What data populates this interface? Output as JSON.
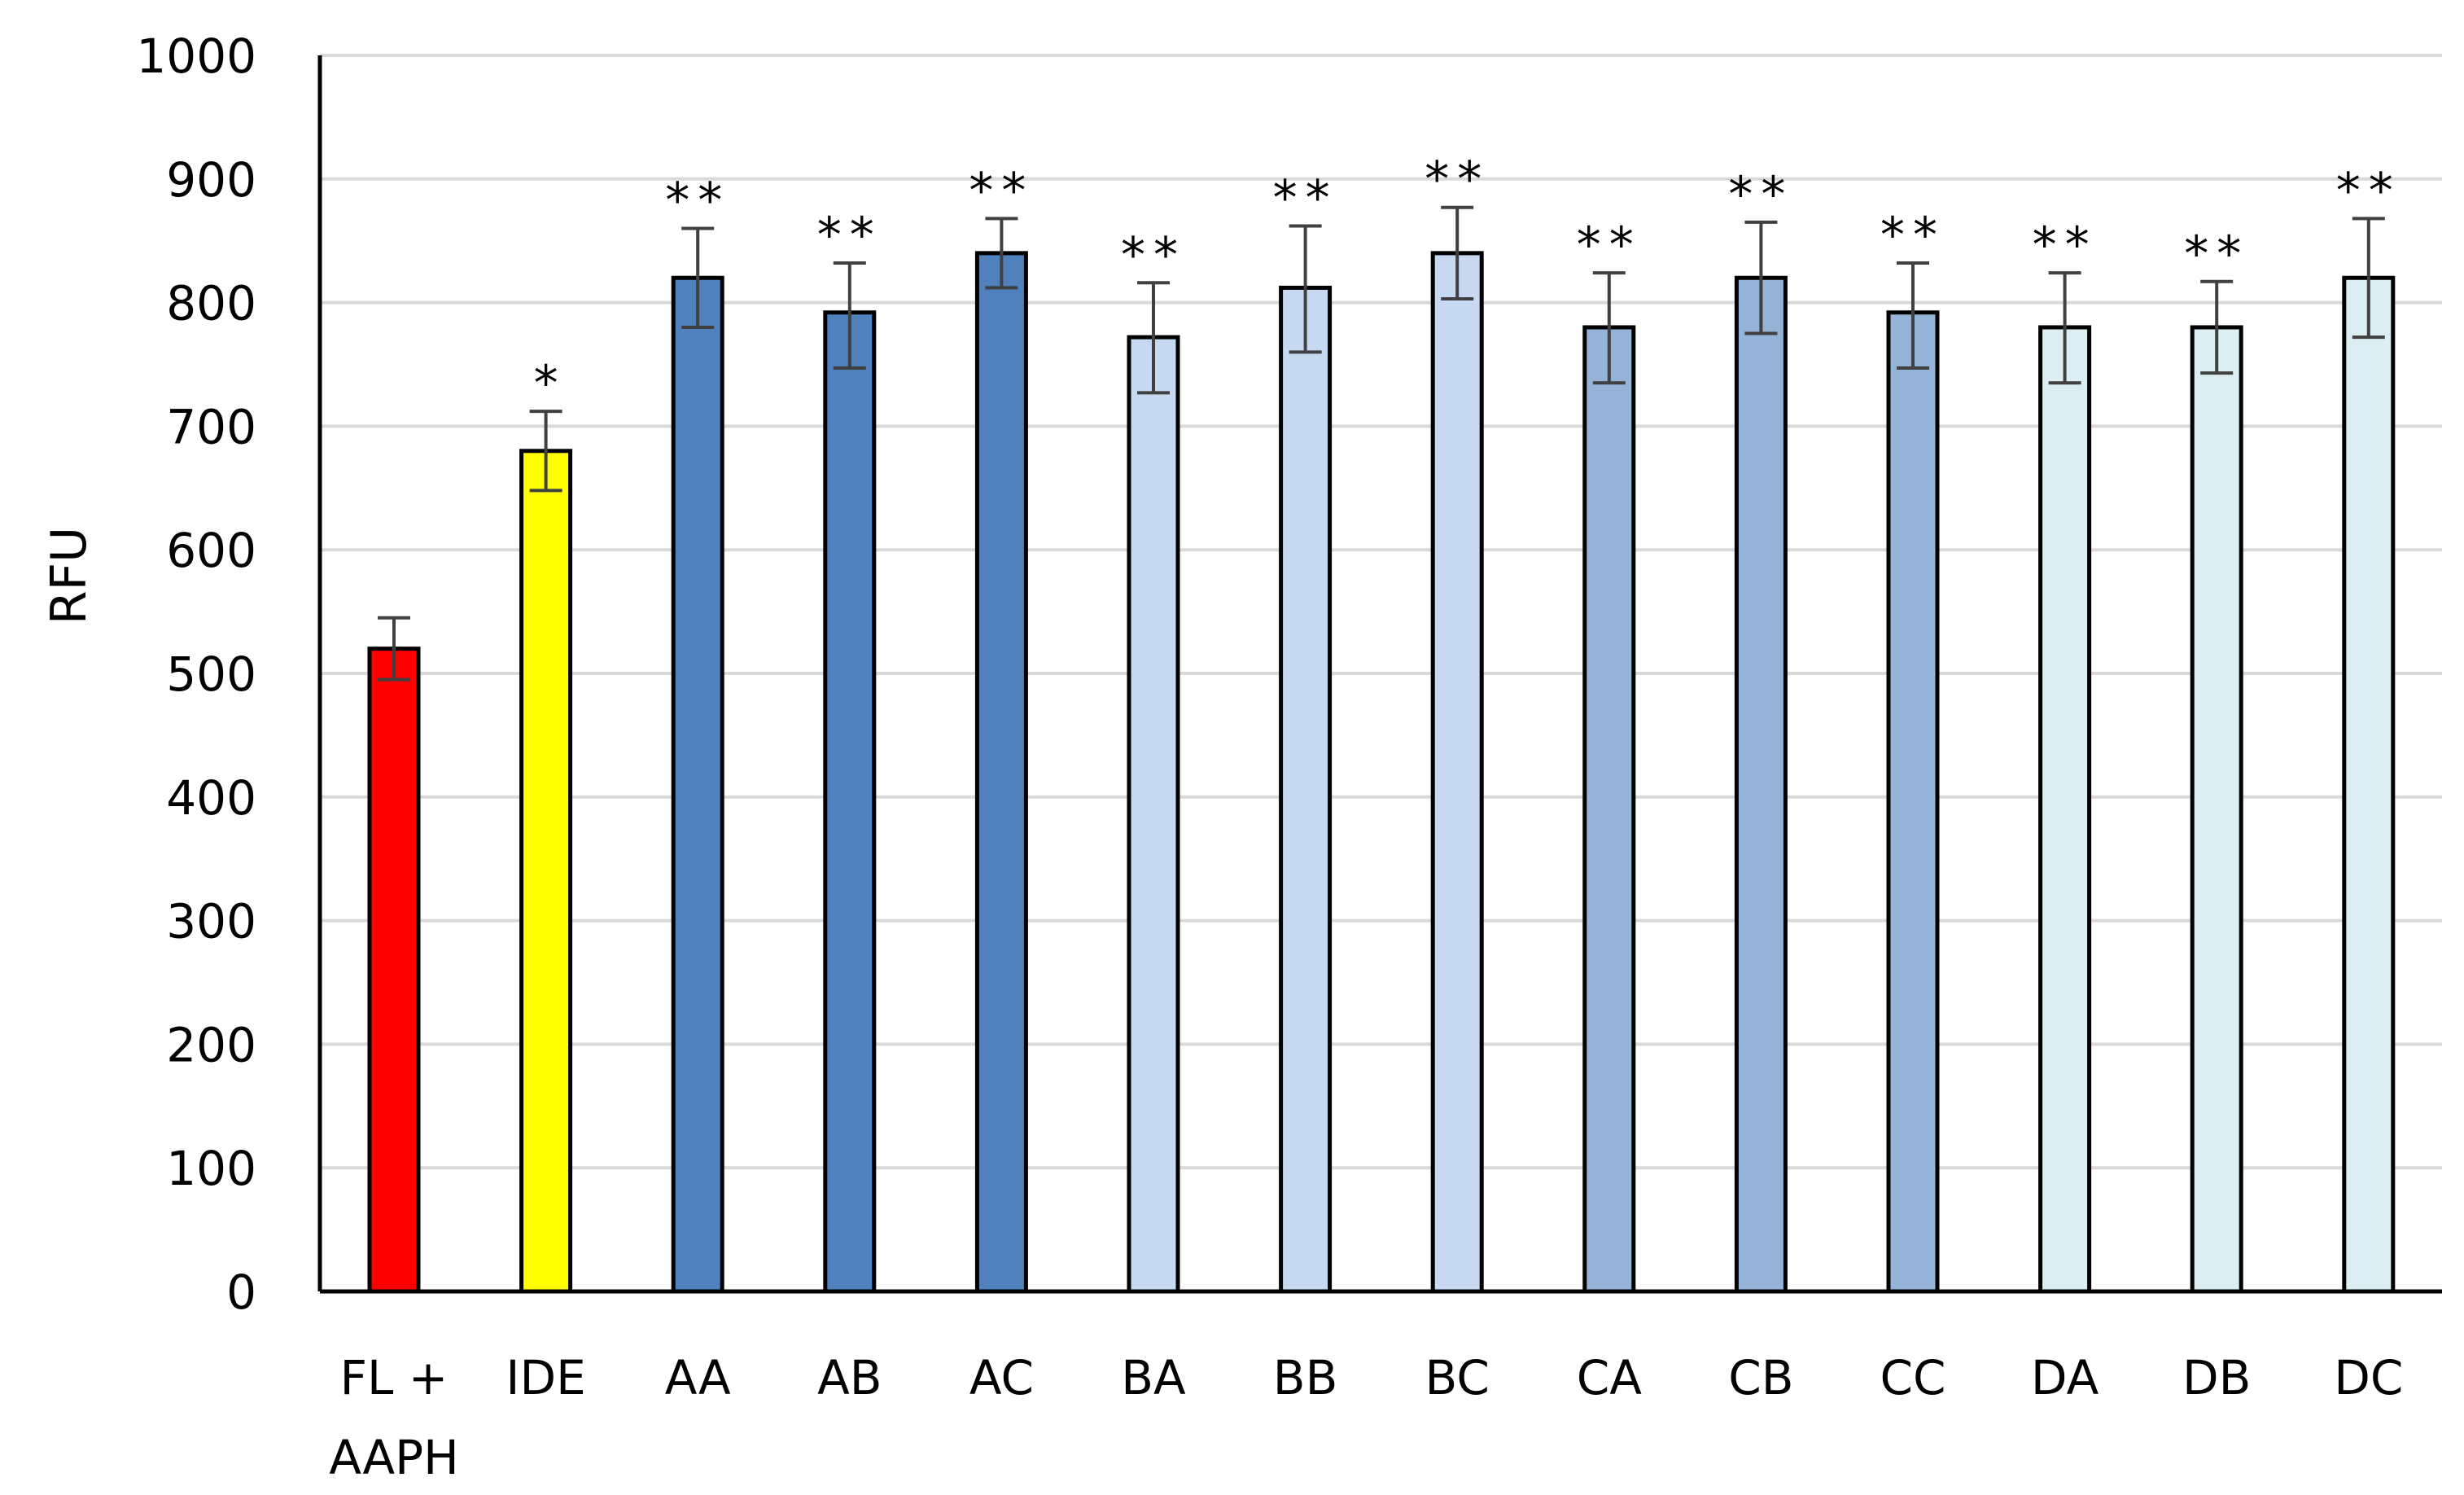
{
  "chart_data": {
    "type": "bar",
    "title": "",
    "xlabel": "",
    "ylabel": "RFU",
    "ylim": [
      0,
      1000
    ],
    "yticks": [
      0,
      100,
      200,
      300,
      400,
      500,
      600,
      700,
      800,
      900,
      1000
    ],
    "grid": true,
    "legend": "none",
    "categories": [
      "FL +\nAAPH",
      "IDE",
      "AA",
      "AB",
      "AC",
      "BA",
      "BB",
      "BC",
      "CA",
      "CB",
      "CC",
      "DA",
      "DB",
      "DC"
    ],
    "values": [
      520,
      680,
      820,
      792,
      840,
      772,
      812,
      840,
      780,
      820,
      792,
      780,
      780,
      820
    ],
    "error_plus": [
      25,
      32,
      40,
      40,
      28,
      44,
      50,
      37,
      44,
      45,
      40,
      44,
      37,
      48
    ],
    "error_minus": [
      25,
      32,
      40,
      45,
      28,
      45,
      52,
      37,
      45,
      45,
      45,
      45,
      37,
      48
    ],
    "significance": [
      "",
      "*",
      "**",
      "**",
      "**",
      "**",
      "**",
      "**",
      "**",
      "**",
      "**",
      "**",
      "**",
      "**"
    ],
    "colors": [
      "#ff0000",
      "#ffff00",
      "#4f81bd",
      "#4f81bd",
      "#4f81bd",
      "#c6d9f1",
      "#c6d9f1",
      "#c6d9f1",
      "#95b3d7",
      "#95b3d7",
      "#95b3d7",
      "#daeef3",
      "#daeef3",
      "#daeef3"
    ],
    "bar_outline_color": "#000000",
    "grid_color": "#d9d9d9",
    "errorbar_color": "#404040"
  }
}
